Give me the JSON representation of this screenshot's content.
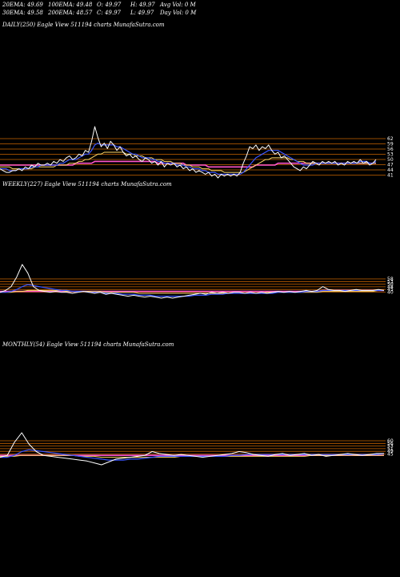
{
  "header": {
    "ema20": "20EMA: 49.69",
    "ema100": "100EMA: 49.48",
    "open": "O: 49.97",
    "high": "H: 49.97",
    "avg_vol": "Avg Vol: 0  M",
    "ema30": "30EMA: 49.58",
    "ema200": "200EMA: 48.57",
    "close": "C: 49.97",
    "low": "L: 49.97",
    "day_vol": "Day Vol: 0  M"
  },
  "colors": {
    "background": "#000000",
    "price": "#ffffff",
    "ema_short": "#3a55ff",
    "ema_mid": "#ffd966",
    "ema_long": "#ff55cc",
    "ema_longest": "#cc6600",
    "hline": "#c86400"
  },
  "chart_data": [
    {
      "type": "line",
      "title": "DAILY(250) Eagle  View  511194  charts MunafaSutra.com",
      "y_ticks": [
        "62",
        "59",
        "56",
        "53",
        "50",
        "47",
        "44",
        "41"
      ],
      "price": [
        45,
        44,
        43,
        43,
        44,
        44,
        45,
        44,
        46,
        45,
        47,
        46,
        48,
        47,
        47,
        48,
        47,
        49,
        48,
        50,
        49,
        51,
        52,
        50,
        51,
        53,
        52,
        55,
        54,
        60,
        68,
        62,
        57,
        59,
        56,
        60,
        58,
        55,
        57,
        54,
        52,
        53,
        51,
        52,
        50,
        49,
        51,
        50,
        48,
        49,
        47,
        49,
        46,
        48,
        47,
        48,
        46,
        47,
        45,
        46,
        44,
        45,
        43,
        44,
        43,
        42,
        43,
        41,
        42,
        40,
        42,
        41,
        42,
        41,
        42,
        41,
        43,
        48,
        52,
        57,
        56,
        58,
        55,
        57,
        56,
        58,
        55,
        53,
        54,
        51,
        52,
        50,
        48,
        46,
        45,
        44,
        46,
        45,
        47,
        49,
        48,
        47,
        49,
        48,
        49,
        48,
        49,
        47,
        48,
        47,
        49,
        48,
        49,
        48,
        50,
        48,
        49,
        47,
        48,
        50
      ],
      "ema_short": [
        45,
        45,
        45,
        44,
        44,
        44,
        45,
        45,
        45,
        45,
        46,
        46,
        46,
        47,
        47,
        47,
        47,
        47,
        47,
        48,
        48,
        49,
        50,
        50,
        50,
        51,
        52,
        53,
        53,
        55,
        58,
        59,
        58,
        58,
        58,
        58,
        58,
        57,
        57,
        56,
        55,
        54,
        53,
        53,
        52,
        51,
        51,
        51,
        50,
        50,
        49,
        49,
        48,
        48,
        48,
        48,
        47,
        47,
        47,
        46,
        46,
        45,
        45,
        45,
        44,
        44,
        43,
        43,
        43,
        42,
        42,
        42,
        42,
        42,
        42,
        42,
        42,
        43,
        45,
        47,
        49,
        51,
        52,
        53,
        54,
        55,
        55,
        55,
        55,
        54,
        53,
        52,
        51,
        50,
        49,
        48,
        47,
        47,
        47,
        47,
        48,
        48,
        48,
        48,
        48,
        48,
        48,
        48,
        48,
        48,
        48,
        48,
        48,
        48,
        49,
        49,
        49,
        48,
        48,
        49
      ],
      "ema_mid": [
        46,
        46,
        46,
        46,
        45,
        45,
        45,
        45,
        45,
        45,
        45,
        46,
        46,
        46,
        46,
        46,
        46,
        46,
        47,
        47,
        47,
        47,
        48,
        48,
        48,
        49,
        49,
        50,
        50,
        51,
        52,
        53,
        53,
        54,
        54,
        54,
        54,
        54,
        54,
        54,
        53,
        53,
        53,
        52,
        52,
        52,
        51,
        51,
        51,
        50,
        50,
        50,
        49,
        49,
        49,
        48,
        48,
        48,
        47,
        47,
        47,
        46,
        46,
        46,
        45,
        45,
        45,
        44,
        44,
        44,
        44,
        43,
        43,
        43,
        43,
        43,
        43,
        43,
        44,
        45,
        46,
        47,
        48,
        49,
        50,
        50,
        51,
        51,
        51,
        51,
        51,
        51,
        50,
        50,
        49,
        49,
        49,
        48,
        48,
        48,
        48,
        48,
        48,
        48,
        48,
        48,
        48,
        48,
        48,
        48,
        48,
        48,
        48,
        48,
        48,
        48,
        48,
        48,
        48,
        48
      ],
      "ema_long": [
        47,
        47,
        47,
        47,
        47,
        47,
        47,
        47,
        47,
        47,
        47,
        47,
        47,
        47,
        47,
        47,
        47,
        47,
        47,
        47,
        47,
        47,
        47,
        47,
        48,
        48,
        48,
        48,
        48,
        48,
        49,
        49,
        49,
        49,
        49,
        49,
        49,
        49,
        49,
        49,
        49,
        49,
        49,
        49,
        49,
        49,
        49,
        49,
        49,
        49,
        48,
        48,
        48,
        48,
        48,
        48,
        48,
        48,
        48,
        47,
        47,
        47,
        47,
        47,
        47,
        47,
        46,
        46,
        46,
        46,
        46,
        46,
        46,
        46,
        46,
        46,
        46,
        46,
        46,
        46,
        46,
        47,
        47,
        47,
        47,
        47,
        47,
        47,
        48,
        48,
        48,
        48,
        48,
        48,
        48,
        48,
        48,
        48,
        48,
        48,
        48,
        48,
        48,
        48,
        48,
        48,
        48,
        48,
        48,
        48,
        48,
        48,
        48,
        48,
        48,
        48,
        48,
        48,
        48,
        48
      ]
    },
    {
      "type": "line",
      "title": "WEEKLY(227) Eagle  View  511194  charts MunafaSutra.com",
      "y_ticks": [
        "58",
        "53",
        "50",
        "48",
        "45",
        "40"
      ],
      "price": [
        46,
        48,
        52,
        62,
        75,
        66,
        52,
        48,
        47,
        46,
        47,
        46,
        46,
        45,
        46,
        47,
        46,
        45,
        46,
        44,
        45,
        44,
        43,
        42,
        43,
        42,
        41,
        42,
        41,
        40,
        41,
        40,
        41,
        42,
        43,
        44,
        45,
        44,
        46,
        45,
        46,
        45,
        46,
        46,
        45,
        46,
        45,
        46,
        45,
        46,
        47,
        46,
        47,
        46,
        47,
        48,
        47,
        48,
        52,
        49,
        48,
        48,
        47,
        48,
        49,
        48,
        48,
        48,
        49,
        48
      ],
      "ema_short": [
        46,
        46,
        47,
        49,
        52,
        54,
        53,
        52,
        51,
        50,
        49,
        48,
        48,
        47,
        47,
        47,
        46,
        46,
        46,
        45,
        45,
        45,
        44,
        44,
        44,
        43,
        43,
        43,
        42,
        42,
        42,
        42,
        42,
        42,
        42,
        43,
        43,
        43,
        44,
        44,
        44,
        45,
        45,
        45,
        45,
        45,
        45,
        45,
        45,
        45,
        46,
        46,
        46,
        46,
        46,
        47,
        47,
        47,
        48,
        48,
        48,
        48,
        48,
        48,
        48,
        48,
        48,
        48,
        48,
        48
      ],
      "ema_mid": [
        46,
        46,
        46,
        47,
        47,
        48,
        48,
        48,
        48,
        48,
        48,
        48,
        47,
        47,
        47,
        47,
        47,
        47,
        47,
        46,
        46,
        46,
        46,
        46,
        46,
        45,
        45,
        45,
        45,
        45,
        45,
        45,
        45,
        45,
        45,
        45,
        45,
        45,
        45,
        45,
        45,
        45,
        45,
        45,
        45,
        45,
        45,
        45,
        46,
        46,
        46,
        46,
        46,
        46,
        46,
        46,
        46,
        46,
        47,
        47,
        47,
        47,
        47,
        47,
        47,
        47,
        47,
        47,
        48,
        48
      ],
      "ema_long": [
        47,
        47,
        47,
        47,
        47,
        47,
        47,
        47,
        47,
        47,
        47,
        47,
        47,
        47,
        47,
        47,
        47,
        47,
        47,
        47,
        47,
        47,
        47,
        47,
        47,
        47,
        47,
        47,
        47,
        47,
        47,
        47,
        47,
        47,
        47,
        47,
        47,
        47,
        47,
        47,
        47,
        47,
        47,
        47,
        47,
        47,
        47,
        47,
        47,
        47,
        47,
        47,
        47,
        47,
        47,
        47,
        47,
        47,
        48,
        48,
        48,
        48,
        48,
        48,
        48,
        48,
        48,
        48,
        48,
        48
      ]
    },
    {
      "type": "line",
      "title": "MONTHLY(54) Eagle  View  511194  charts MunafaSutra.com",
      "y_ticks": [
        "60",
        "56",
        "53",
        "51",
        "49",
        "45"
      ],
      "price": [
        46,
        48,
        62,
        72,
        60,
        52,
        48,
        47,
        46,
        45,
        44,
        43,
        42,
        40,
        38,
        41,
        44,
        45,
        46,
        47,
        48,
        52,
        50,
        49,
        48,
        49,
        48,
        47,
        46,
        47,
        48,
        49,
        50,
        52,
        51,
        49,
        48,
        47,
        49,
        50,
        48,
        49,
        50,
        48,
        49,
        47,
        48,
        49,
        50,
        49,
        48,
        49,
        50,
        50
      ],
      "ema_short": [
        46,
        46,
        48,
        52,
        54,
        53,
        52,
        51,
        50,
        49,
        48,
        47,
        46,
        45,
        44,
        43,
        43,
        43,
        44,
        44,
        45,
        46,
        47,
        47,
        47,
        47,
        47,
        47,
        47,
        47,
        47,
        47,
        48,
        48,
        49,
        49,
        49,
        49,
        49,
        49,
        49,
        49,
        49,
        49,
        49,
        49,
        49,
        49,
        49,
        49,
        49,
        49,
        49,
        50
      ],
      "ema_mid": [
        47,
        47,
        47,
        48,
        48,
        48,
        48,
        48,
        48,
        48,
        48,
        47,
        47,
        47,
        46,
        46,
        46,
        46,
        46,
        46,
        46,
        46,
        46,
        46,
        46,
        47,
        47,
        47,
        47,
        47,
        47,
        47,
        47,
        47,
        47,
        47,
        47,
        47,
        47,
        47,
        47,
        47,
        47,
        48,
        48,
        48,
        48,
        48,
        48,
        48,
        48,
        48,
        48,
        48
      ],
      "ema_long": [
        48,
        48,
        48,
        48,
        48,
        48,
        48,
        48,
        48,
        48,
        48,
        48,
        48,
        48,
        48,
        48,
        48,
        48,
        48,
        48,
        48,
        48,
        48,
        48,
        48,
        48,
        48,
        48,
        48,
        48,
        48,
        48,
        48,
        48,
        48,
        48,
        48,
        48,
        48,
        48,
        48,
        48,
        48,
        48,
        48,
        48,
        48,
        48,
        48,
        48,
        48,
        48,
        48,
        48
      ]
    }
  ]
}
